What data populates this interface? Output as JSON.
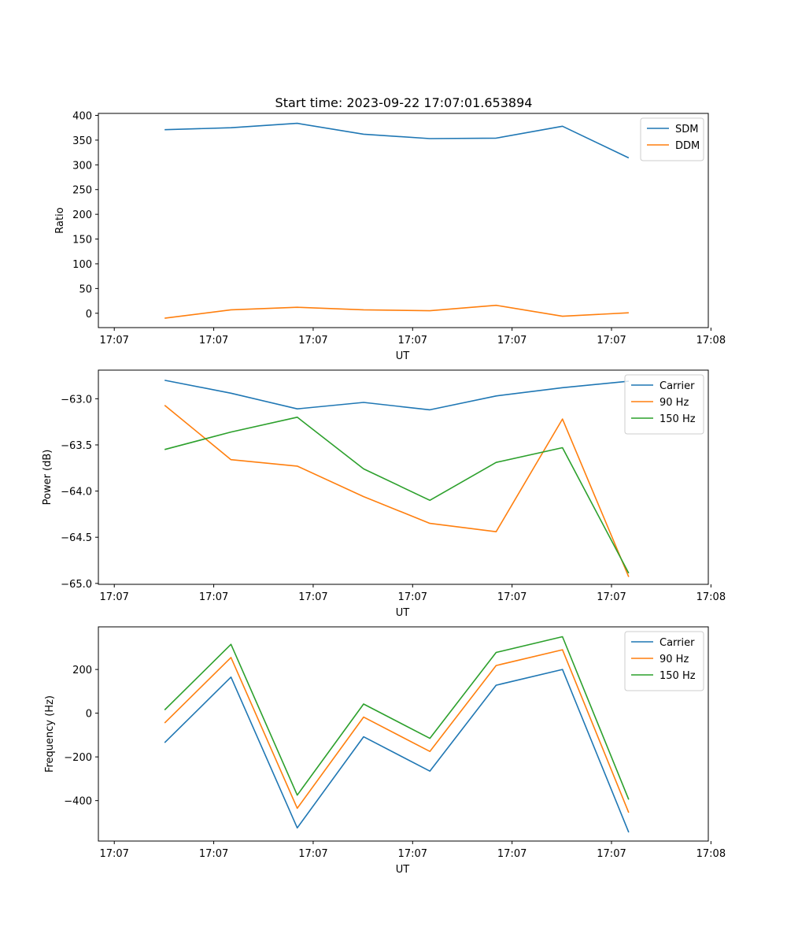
{
  "title": "Start time: 2023-09-22 17:07:01.653894",
  "chart_data": [
    {
      "type": "line",
      "ylabel": "Ratio",
      "xlabel": "UT",
      "x": [
        0.5,
        1.0,
        1.5,
        2.0,
        2.5,
        3.0,
        3.5,
        4.0
      ],
      "xlim": [
        0,
        4.6
      ],
      "x_ticks": [
        0.12,
        0.87,
        1.62,
        2.37,
        3.12,
        3.87,
        4.62
      ],
      "x_tick_labels": [
        "17:07",
        "17:07",
        "17:07",
        "17:07",
        "17:07",
        "17:07",
        "17:08"
      ],
      "ylim": [
        -29,
        404
      ],
      "y_ticks": [
        0,
        50,
        100,
        150,
        200,
        250,
        300,
        350,
        400
      ],
      "y_tick_labels": [
        "0",
        "50",
        "100",
        "150",
        "200",
        "250",
        "300",
        "350",
        "400"
      ],
      "legend_loc": "upper right",
      "series": [
        {
          "name": "SDM",
          "color": "#1f77b4",
          "values": [
            371,
            375,
            384,
            362,
            353,
            354,
            378,
            314
          ]
        },
        {
          "name": "DDM",
          "color": "#ff7f0e",
          "values": [
            -10,
            7,
            12,
            7,
            5,
            16,
            -6,
            1
          ]
        }
      ]
    },
    {
      "type": "line",
      "ylabel": "Power (dB)",
      "xlabel": "UT",
      "x": [
        0.5,
        1.0,
        1.5,
        2.0,
        2.5,
        3.0,
        3.5,
        4.0
      ],
      "xlim": [
        0,
        4.6
      ],
      "x_ticks": [
        0.12,
        0.87,
        1.62,
        2.37,
        3.12,
        3.87,
        4.62
      ],
      "x_tick_labels": [
        "17:07",
        "17:07",
        "17:07",
        "17:07",
        "17:07",
        "17:07",
        "17:08"
      ],
      "ylim": [
        -65.01,
        -62.69
      ],
      "y_ticks": [
        -65.0,
        -64.5,
        -64.0,
        -63.5,
        -63.0
      ],
      "y_tick_labels": [
        "−65.0",
        "−64.5",
        "−64.0",
        "−63.5",
        "−63.0"
      ],
      "legend_loc": "upper right",
      "series": [
        {
          "name": "Carrier",
          "color": "#1f77b4",
          "values": [
            -62.8,
            -62.94,
            -63.11,
            -63.04,
            -63.12,
            -62.97,
            -62.88,
            -62.81
          ]
        },
        {
          "name": "90 Hz",
          "color": "#ff7f0e",
          "values": [
            -63.07,
            -63.66,
            -63.73,
            -64.06,
            -64.35,
            -64.44,
            -63.22,
            -64.93
          ]
        },
        {
          "name": "150 Hz",
          "color": "#2ca02c",
          "values": [
            -63.55,
            -63.36,
            -63.2,
            -63.76,
            -64.1,
            -63.69,
            -63.53,
            -64.89
          ]
        }
      ]
    },
    {
      "type": "line",
      "ylabel": "Frequency (Hz)",
      "xlabel": "UT",
      "x": [
        0.5,
        1.0,
        1.5,
        2.0,
        2.5,
        3.0,
        3.5,
        4.0
      ],
      "xlim": [
        0,
        4.6
      ],
      "x_ticks": [
        0.12,
        0.87,
        1.62,
        2.37,
        3.12,
        3.87,
        4.62
      ],
      "x_tick_labels": [
        "17:07",
        "17:07",
        "17:07",
        "17:07",
        "17:07",
        "17:07",
        "17:08"
      ],
      "ylim": [
        -585,
        395
      ],
      "y_ticks": [
        -400,
        -200,
        0,
        200
      ],
      "y_tick_labels": [
        "−400",
        "−200",
        "0",
        "200"
      ],
      "legend_loc": "upper right",
      "series": [
        {
          "name": "Carrier",
          "color": "#1f77b4",
          "values": [
            -135,
            165,
            -525,
            -108,
            -265,
            128,
            200,
            -545
          ]
        },
        {
          "name": "90 Hz",
          "color": "#ff7f0e",
          "values": [
            -45,
            255,
            -435,
            -18,
            -175,
            218,
            290,
            -455
          ]
        },
        {
          "name": "150 Hz",
          "color": "#2ca02c",
          "values": [
            15,
            315,
            -375,
            42,
            -115,
            278,
            350,
            -395
          ]
        }
      ]
    }
  ]
}
